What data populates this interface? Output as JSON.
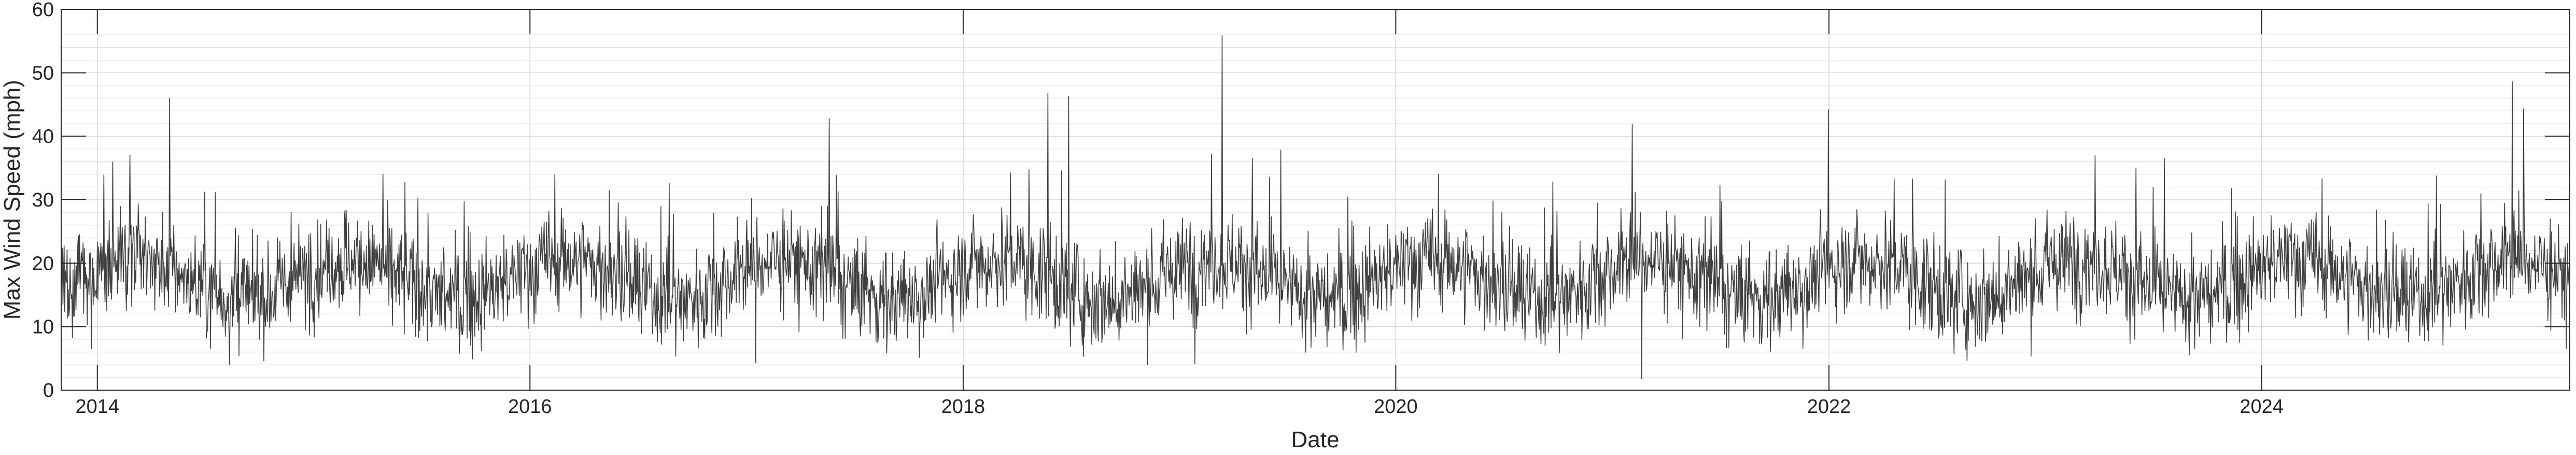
{
  "chart_data": {
    "type": "line",
    "title": "",
    "xlabel": "Date",
    "ylabel": "Max Wind Speed (mph)",
    "xlim": [
      "2013-11-01",
      "2025-06-04"
    ],
    "ylim": [
      0,
      60
    ],
    "x_ticks": [
      {
        "date": "2014-01-01",
        "label": "2014"
      },
      {
        "date": "2016-01-01",
        "label": "2016"
      },
      {
        "date": "2018-01-01",
        "label": "2018"
      },
      {
        "date": "2020-01-01",
        "label": "2020"
      },
      {
        "date": "2022-01-01",
        "label": "2022"
      },
      {
        "date": "2024-01-01",
        "label": "2024"
      }
    ],
    "y_ticks": [
      0,
      10,
      20,
      30,
      40,
      50,
      60
    ],
    "y_minor_step": 2,
    "grid": true,
    "line_color": "#404040",
    "series": [
      {
        "name": "",
        "start_date": "2013-11-01",
        "step_days": 1,
        "typical_mean": 17.5,
        "typical_range": [
          5,
          30
        ],
        "notable_points": [
          {
            "date": "2014-05-03",
            "value": 46.0
          },
          {
            "date": "2017-05-20",
            "value": 42.8
          },
          {
            "date": "2017-01-16",
            "value": 4.3
          },
          {
            "date": "2018-05-24",
            "value": 46.8
          },
          {
            "date": "2018-06-28",
            "value": 46.3
          },
          {
            "date": "2019-03-14",
            "value": 55.9
          },
          {
            "date": "2019-01-27",
            "value": 4.2
          },
          {
            "date": "2021-02-03",
            "value": 41.9
          },
          {
            "date": "2021-02-19",
            "value": 1.8
          },
          {
            "date": "2021-12-31",
            "value": 44.2
          },
          {
            "date": "2025-02-27",
            "value": 48.6
          },
          {
            "date": "2025-03-18",
            "value": 44.3
          }
        ]
      }
    ]
  }
}
